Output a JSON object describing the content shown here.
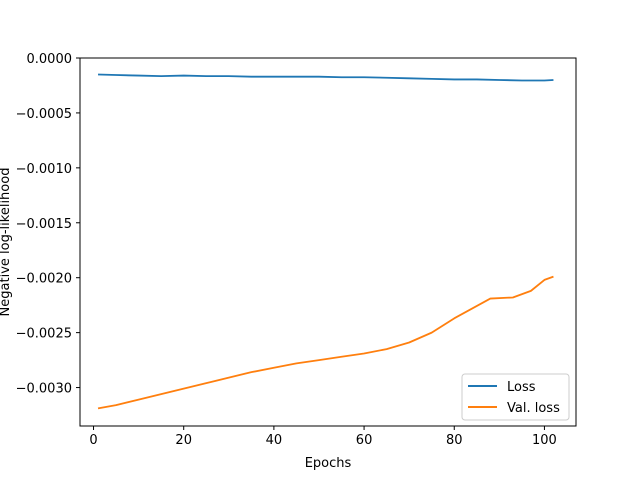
{
  "chart_data": {
    "type": "line",
    "title": "",
    "xlabel": "Epochs",
    "ylabel": "Negative log-likelihood",
    "xlim": [
      -3,
      107
    ],
    "ylim": [
      -0.00335,
      0.0
    ],
    "x_ticks": [
      0,
      20,
      40,
      60,
      80,
      100
    ],
    "x_tick_labels": [
      "0",
      "20",
      "40",
      "60",
      "80",
      "100"
    ],
    "y_ticks": [
      0.0,
      -0.0005,
      -0.001,
      -0.0015,
      -0.002,
      -0.0025,
      -0.003
    ],
    "y_tick_labels": [
      "0.0000",
      "−0.0005",
      "−0.0010",
      "−0.0015",
      "−0.0020",
      "−0.0025",
      "−0.0030"
    ],
    "grid": false,
    "legend_position": "lower-right",
    "series": [
      {
        "name": "Loss",
        "color": "#1f77b4",
        "x": [
          1,
          5,
          10,
          15,
          20,
          25,
          30,
          35,
          40,
          45,
          50,
          55,
          60,
          65,
          70,
          75,
          80,
          85,
          90,
          95,
          100,
          102
        ],
        "y": [
          -0.00015,
          -0.000155,
          -0.00016,
          -0.000165,
          -0.00016,
          -0.000165,
          -0.000165,
          -0.00017,
          -0.00017,
          -0.00017,
          -0.00017,
          -0.000175,
          -0.000175,
          -0.00018,
          -0.000185,
          -0.00019,
          -0.000195,
          -0.000195,
          -0.0002,
          -0.000205,
          -0.000205,
          -0.0002
        ]
      },
      {
        "name": "Val. loss",
        "color": "#ff7f0e",
        "x": [
          1,
          5,
          10,
          15,
          20,
          25,
          30,
          35,
          40,
          45,
          50,
          55,
          60,
          65,
          70,
          75,
          80,
          84,
          88,
          93,
          97,
          100,
          102
        ],
        "y": [
          -0.00319,
          -0.00316,
          -0.00311,
          -0.00306,
          -0.00301,
          -0.00296,
          -0.00291,
          -0.00286,
          -0.00282,
          -0.00278,
          -0.00275,
          -0.00272,
          -0.00269,
          -0.00265,
          -0.00259,
          -0.0025,
          -0.00237,
          -0.00228,
          -0.00219,
          -0.00218,
          -0.00212,
          -0.00202,
          -0.00199
        ]
      }
    ]
  }
}
